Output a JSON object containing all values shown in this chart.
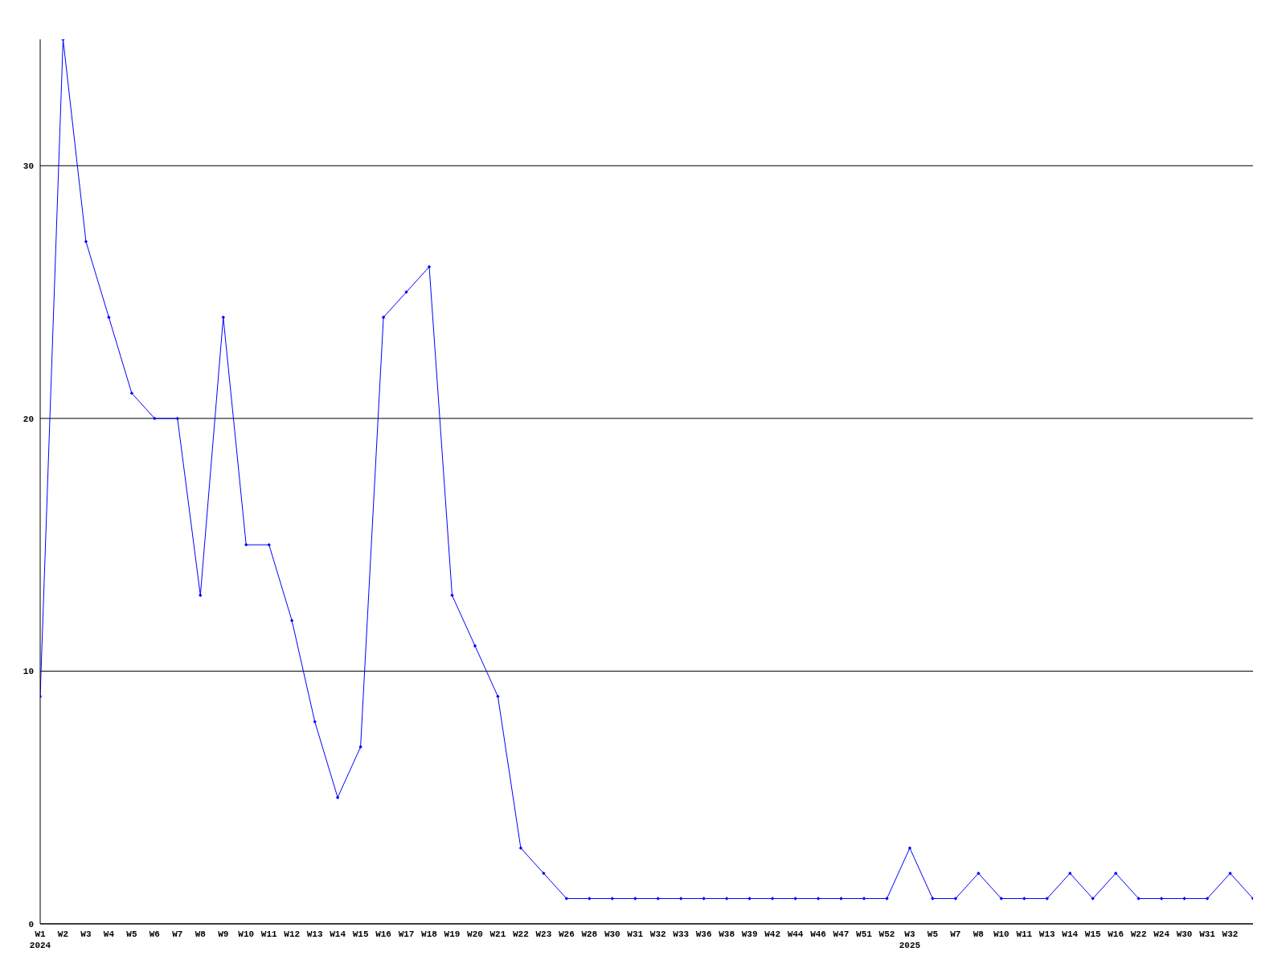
{
  "chart_data": {
    "type": "line",
    "categories": [
      "W1",
      "W2",
      "W3",
      "W4",
      "W5",
      "W6",
      "W7",
      "W8",
      "W9",
      "W10",
      "W11",
      "W12",
      "W13",
      "W14",
      "W15",
      "W16",
      "W17",
      "W18",
      "W19",
      "W20",
      "W21",
      "W22",
      "W23",
      "W26",
      "W28",
      "W30",
      "W31",
      "W32",
      "W33",
      "W36",
      "W38",
      "W39",
      "W42",
      "W44",
      "W46",
      "W47",
      "W51",
      "W52",
      "W3",
      "W5",
      "W7",
      "W8",
      "W10",
      "W11",
      "W13",
      "W14",
      "W15",
      "W16",
      "W22",
      "W24",
      "W30",
      "W31",
      "W32",
      null
    ],
    "series": [
      {
        "color": "#0000ff",
        "values": [
          9,
          35,
          27,
          24,
          21,
          20,
          20,
          13,
          24,
          15,
          15,
          12,
          8,
          5,
          7,
          24,
          25,
          26,
          13,
          11,
          9,
          3,
          2,
          1,
          1,
          1,
          1,
          1,
          1,
          1,
          1,
          1,
          1,
          1,
          1,
          1,
          1,
          1,
          3,
          1,
          1,
          2,
          1,
          1,
          1,
          2,
          1,
          2,
          1,
          1,
          1,
          1,
          2,
          1
        ]
      }
    ],
    "ylim": [
      0,
      35
    ],
    "yticks": [
      0,
      10,
      20,
      30
    ],
    "grid": "y",
    "marker": "diamond",
    "line_style": "solid",
    "annotations": [
      "2024",
      "2025"
    ]
  }
}
